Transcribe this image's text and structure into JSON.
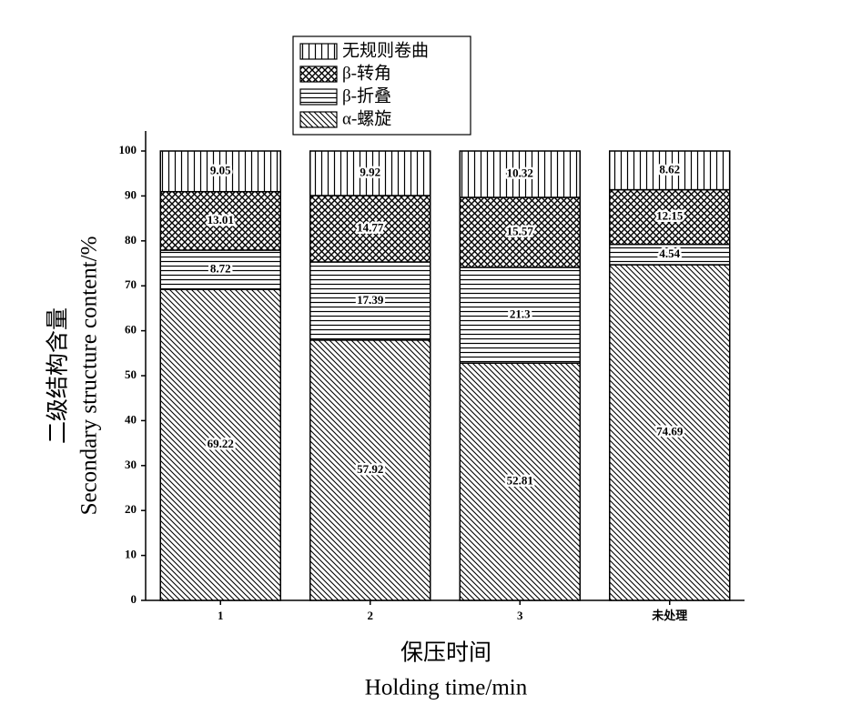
{
  "chart_data": {
    "type": "stacked_bar",
    "categories": [
      "1",
      "2",
      "3",
      "未处理"
    ],
    "series": [
      {
        "name": "α-螺旋",
        "pattern": "diagonal",
        "color": "#000000",
        "values": [
          69.22,
          57.92,
          52.81,
          74.69
        ]
      },
      {
        "name": "β-折叠",
        "pattern": "horizontal",
        "color": "#000000",
        "values": [
          8.72,
          17.39,
          21.3,
          4.54
        ]
      },
      {
        "name": "β-转角",
        "pattern": "crosshatch",
        "color": "#000000",
        "values": [
          13.01,
          14.77,
          15.57,
          12.15
        ]
      },
      {
        "name": "无规则卷曲",
        "pattern": "vertical",
        "color": "#000000",
        "values": [
          9.05,
          9.92,
          10.32,
          8.62
        ]
      }
    ],
    "ylabel": [
      "二级结构含量",
      "Secondary structure content/%"
    ],
    "xlabel": [
      "保压时间",
      "Holding time/min"
    ],
    "ylim": [
      0,
      100
    ],
    "yticks": [
      0,
      10,
      20,
      30,
      40,
      50,
      60,
      70,
      80,
      90,
      100
    ],
    "legend": "top"
  }
}
